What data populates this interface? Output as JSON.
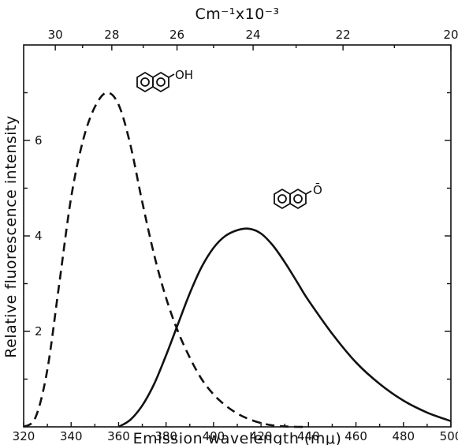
{
  "chart_data": {
    "type": "line",
    "title": "",
    "xlabel": "Emission wavelength (mμ)",
    "ylabel": "Relative fluorescence intensity",
    "x2label": "Cm⁻¹x10⁻³",
    "xlim": [
      320,
      500
    ],
    "ylim": [
      0,
      8
    ],
    "grid": false,
    "x_ticks": [
      "320",
      "340",
      "360",
      "380",
      "400",
      "420",
      "440",
      "460",
      "480",
      "500"
    ],
    "y_ticks": [
      "2",
      "4",
      "6"
    ],
    "x2_ticks": [
      "30",
      "28",
      "26",
      "24",
      "22",
      "20"
    ],
    "series": [
      {
        "name": "OH",
        "style": "dashed",
        "x": [
          320,
          325,
          330,
          335,
          340,
          345,
          350,
          355,
          360,
          365,
          370,
          375,
          380,
          385,
          390,
          395,
          400,
          405,
          410,
          415,
          420,
          425,
          430,
          435,
          440
        ],
        "y": [
          0.0,
          0.2,
          1.2,
          3.0,
          4.8,
          6.0,
          6.7,
          7.0,
          6.75,
          5.9,
          4.7,
          3.6,
          2.7,
          2.0,
          1.45,
          1.0,
          0.68,
          0.45,
          0.28,
          0.16,
          0.08,
          0.03,
          0.01,
          0.0,
          0.0
        ]
      },
      {
        "name": "Ō",
        "style": "solid",
        "x": [
          360,
          365,
          370,
          375,
          380,
          385,
          390,
          395,
          400,
          405,
          410,
          415,
          420,
          425,
          430,
          435,
          440,
          450,
          460,
          470,
          480,
          490,
          500
        ],
        "y": [
          0.0,
          0.15,
          0.45,
          0.9,
          1.5,
          2.15,
          2.8,
          3.35,
          3.75,
          4.0,
          4.12,
          4.15,
          4.05,
          3.8,
          3.45,
          3.05,
          2.65,
          1.95,
          1.35,
          0.9,
          0.55,
          0.3,
          0.12
        ]
      }
    ]
  }
}
